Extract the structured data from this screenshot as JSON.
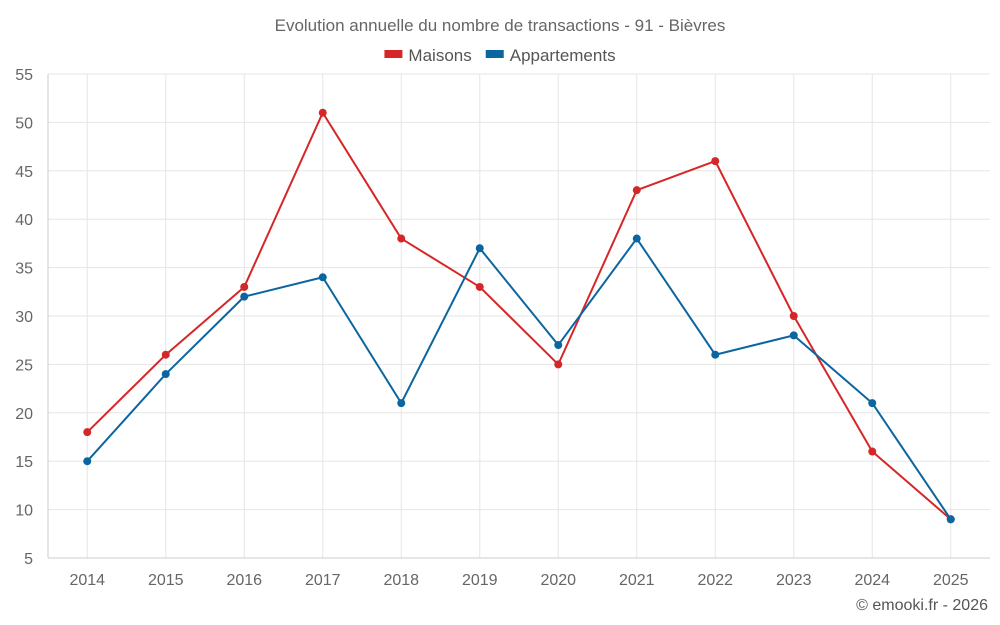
{
  "chart_data": {
    "type": "line",
    "title": "Evolution annuelle du nombre de transactions - 91 - Bièvres",
    "categories": [
      "2014",
      "2015",
      "2016",
      "2017",
      "2018",
      "2019",
      "2020",
      "2021",
      "2022",
      "2023",
      "2024",
      "2025"
    ],
    "series": [
      {
        "name": "Maisons",
        "color": "#d62728",
        "values": [
          18,
          26,
          33,
          51,
          38,
          33,
          25,
          43,
          46,
          30,
          16,
          9
        ]
      },
      {
        "name": "Appartements",
        "color": "#0b66a0",
        "values": [
          15,
          24,
          32,
          34,
          21,
          37,
          27,
          38,
          26,
          28,
          21,
          9
        ]
      }
    ],
    "ylim": [
      5,
      55
    ],
    "yticks": [
      5,
      10,
      15,
      20,
      25,
      30,
      35,
      40,
      45,
      50,
      55
    ],
    "grid": true,
    "legend": "top-center",
    "xlabel": "",
    "ylabel": ""
  },
  "credit": "© emooki.fr - 2026"
}
